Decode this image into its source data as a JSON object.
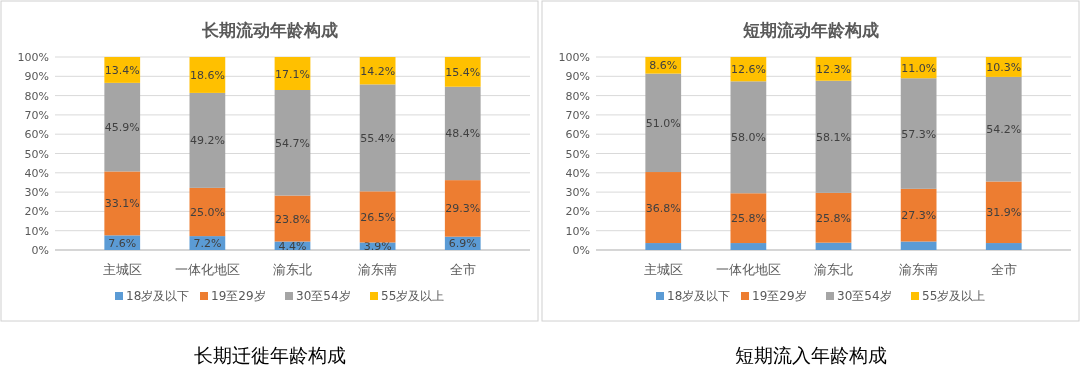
{
  "chart_data": [
    {
      "type": "bar",
      "title": "长期流动年龄构成",
      "stacked": true,
      "categories": [
        "主城区",
        "一体化地区",
        "渝东北",
        "渝东南",
        "全市"
      ],
      "ylim": [
        0,
        100
      ],
      "yticks": [
        {
          "value": 0,
          "label": "0%"
        },
        {
          "value": 10,
          "label": "10%"
        },
        {
          "value": 20,
          "label": "20%"
        },
        {
          "value": 30,
          "label": "30%"
        },
        {
          "value": 40,
          "label": "40%"
        },
        {
          "value": 50,
          "label": "50%"
        },
        {
          "value": 60,
          "label": "60%"
        },
        {
          "value": 70,
          "label": "70%"
        },
        {
          "value": 80,
          "label": "80%"
        },
        {
          "value": 90,
          "label": "90%"
        },
        {
          "value": 100,
          "label": "100%"
        }
      ],
      "grid": "y",
      "legend": "bottom",
      "annotations": [
        "长期迁徙年龄构成"
      ],
      "series": [
        {
          "name": "18岁及以下",
          "color": "#5b9bd5",
          "values": [
            7.6,
            7.2,
            4.4,
            3.9,
            6.9
          ],
          "value_labels": [
            "7.6%",
            "7.2%",
            "4.4%",
            "3.9%",
            "6.9%"
          ]
        },
        {
          "name": "19至29岁",
          "color": "#ed7d31",
          "values": [
            33.1,
            25.0,
            23.8,
            26.5,
            29.3
          ],
          "value_labels": [
            "33.1%",
            "25.0%",
            "23.8%",
            "26.5%",
            "29.3%"
          ]
        },
        {
          "name": "30至54岁",
          "color": "#a5a5a5",
          "values": [
            45.9,
            49.2,
            54.7,
            55.4,
            48.4
          ],
          "value_labels": [
            "45.9%",
            "49.2%",
            "54.7%",
            "55.4%",
            "48.4%"
          ]
        },
        {
          "name": "55岁及以上",
          "color": "#ffc000",
          "values": [
            13.4,
            18.6,
            17.1,
            14.2,
            15.4
          ],
          "value_labels": [
            "13.4%",
            "18.6%",
            "17.1%",
            "14.2%",
            "15.4%"
          ]
        }
      ]
    },
    {
      "type": "bar",
      "title": "短期流动年龄构成",
      "stacked": true,
      "categories": [
        "主城区",
        "一体化地区",
        "渝东北",
        "渝东南",
        "全市"
      ],
      "ylim": [
        0,
        100
      ],
      "yticks": [
        {
          "value": 0,
          "label": "0%"
        },
        {
          "value": 10,
          "label": "10%"
        },
        {
          "value": 20,
          "label": "20%"
        },
        {
          "value": 30,
          "label": "30%"
        },
        {
          "value": 40,
          "label": "40%"
        },
        {
          "value": 50,
          "label": "50%"
        },
        {
          "value": 60,
          "label": "60%"
        },
        {
          "value": 70,
          "label": "70%"
        },
        {
          "value": 80,
          "label": "80%"
        },
        {
          "value": 90,
          "label": "90%"
        },
        {
          "value": 100,
          "label": "100%"
        }
      ],
      "grid": "y",
      "legend": "bottom",
      "annotations": [
        "短期流入年龄构成"
      ],
      "series": [
        {
          "name": "18岁及以下",
          "color": "#5b9bd5",
          "values": [
            3.6,
            3.6,
            3.8,
            4.4,
            3.6
          ],
          "value_labels": [
            null,
            null,
            null,
            null,
            null
          ]
        },
        {
          "name": "19至29岁",
          "color": "#ed7d31",
          "values": [
            36.8,
            25.8,
            25.8,
            27.3,
            31.9
          ],
          "value_labels": [
            "36.8%",
            "25.8%",
            "25.8%",
            "27.3%",
            "31.9%"
          ]
        },
        {
          "name": "30至54岁",
          "color": "#a5a5a5",
          "values": [
            51.0,
            58.0,
            58.1,
            57.3,
            54.2
          ],
          "value_labels": [
            "51.0%",
            "58.0%",
            "58.1%",
            "57.3%",
            "54.2%"
          ]
        },
        {
          "name": "55岁及以上",
          "color": "#ffc000",
          "values": [
            8.6,
            12.6,
            12.3,
            11.0,
            10.3
          ],
          "value_labels": [
            "8.6%",
            "12.6%",
            "12.3%",
            "11.0%",
            "10.3%"
          ]
        }
      ]
    }
  ]
}
